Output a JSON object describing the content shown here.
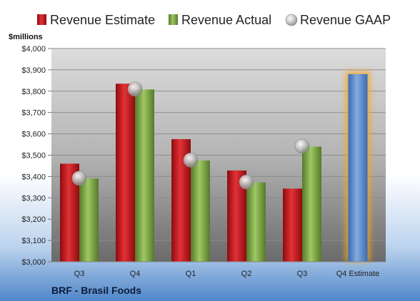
{
  "chart_data": {
    "type": "bar",
    "ylabel": "$millions",
    "company": "BRF - Brasil Foods",
    "ylim": [
      3000,
      4000
    ],
    "y_ticks": [
      "$3,000",
      "$3,100",
      "$3,200",
      "$3,300",
      "$3,400",
      "$3,500",
      "$3,600",
      "$3,700",
      "$3,800",
      "$3,900",
      "$4,000"
    ],
    "y_tick_values": [
      3000,
      3100,
      3200,
      3300,
      3400,
      3500,
      3600,
      3700,
      3800,
      3900,
      4000
    ],
    "categories": [
      "Q3",
      "Q4",
      "Q1",
      "Q2",
      "Q3",
      "Q4 Estimate"
    ],
    "series": [
      {
        "name": "Revenue Estimate",
        "kind": "bar",
        "color": "#c0171c",
        "values": [
          3460,
          3835,
          3575,
          3428,
          3343,
          null
        ]
      },
      {
        "name": "Revenue Actual",
        "kind": "bar",
        "color": "#7aa43c",
        "values": [
          3390,
          3808,
          3475,
          3372,
          3540,
          null
        ]
      },
      {
        "name": "Revenue GAAP",
        "kind": "marker",
        "color": "#b0b0b0",
        "values": [
          3392,
          3810,
          3477,
          3374,
          3542,
          null
        ]
      },
      {
        "name": "Q4 Estimate",
        "kind": "bar",
        "color": "#5d8fd0",
        "highlight": "#f5a623",
        "values": [
          null,
          null,
          null,
          null,
          null,
          3880
        ]
      }
    ],
    "legend_position": "top",
    "grid": true
  }
}
